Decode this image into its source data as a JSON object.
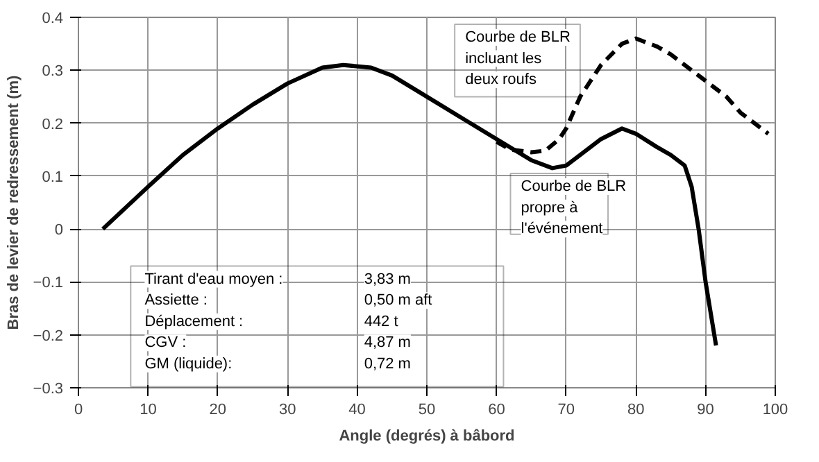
{
  "chart_data": {
    "type": "line",
    "xlabel": "Angle (degrés) à bâbord",
    "ylabel": "Bras de levier de redressement (m)",
    "xlim": [
      0,
      100
    ],
    "ylim": [
      -0.3,
      0.4
    ],
    "xticks": [
      0,
      10,
      20,
      30,
      40,
      50,
      60,
      70,
      80,
      90,
      100
    ],
    "yticks": [
      -0.3,
      -0.2,
      -0.1,
      0,
      0.1,
      0.2,
      0.3,
      0.4
    ],
    "grid": true,
    "marker": "none",
    "series": [
      {
        "name": "Courbe de BLR incluant les deux roufs",
        "color": "#000000",
        "line_style": "dashed",
        "x": [
          60,
          62,
          65,
          67,
          69,
          70,
          72,
          75,
          78,
          80,
          83,
          85,
          88,
          90,
          93,
          95,
          99
        ],
        "values": [
          0.165,
          0.15,
          0.145,
          0.148,
          0.17,
          0.19,
          0.25,
          0.31,
          0.35,
          0.36,
          0.345,
          0.33,
          0.3,
          0.28,
          0.25,
          0.22,
          0.18
        ]
      },
      {
        "name": "Courbe de BLR propre à l'événement",
        "color": "#000000",
        "line_style": "solid",
        "x": [
          3.5,
          10,
          15,
          20,
          25,
          30,
          35,
          38,
          42,
          45,
          50,
          55,
          60,
          65,
          68,
          70,
          72,
          75,
          78,
          80,
          83,
          85,
          87,
          88,
          89,
          90,
          91.5
        ],
        "values": [
          0,
          0.08,
          0.14,
          0.19,
          0.235,
          0.275,
          0.305,
          0.31,
          0.305,
          0.29,
          0.25,
          0.21,
          0.17,
          0.13,
          0.115,
          0.12,
          0.14,
          0.17,
          0.19,
          0.18,
          0.155,
          0.14,
          0.12,
          0.08,
          0.0,
          -0.1,
          -0.22
        ]
      }
    ],
    "annotations": [
      "Tirant d'eau moyen :",
      "3,83 m",
      "Assiette :",
      "0,50 m aft",
      "Déplacement :",
      "442 t",
      "CGV :",
      "4,87 m",
      "GM (liquide):",
      "0,72 m"
    ]
  }
}
